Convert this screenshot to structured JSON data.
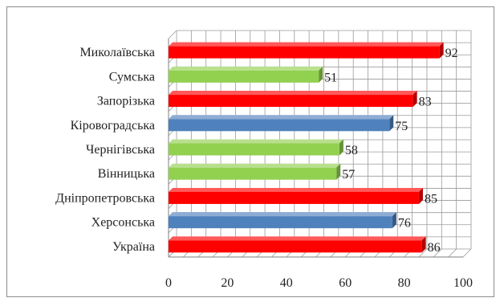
{
  "chart_data": {
    "type": "bar",
    "orientation": "horizontal",
    "style": "3d",
    "categories": [
      "Миколаївська",
      "Сумська",
      "Запорізька",
      "Кіровоградська",
      "Чернігівська",
      "Вінницька",
      "Дніпропетровська",
      "Херсонська",
      "Україна"
    ],
    "values": [
      92,
      51,
      83,
      75,
      58,
      57,
      85,
      76,
      86
    ],
    "bar_colors": [
      "#ff0000",
      "#92d050",
      "#ff0000",
      "#4f81bd",
      "#92d050",
      "#92d050",
      "#ff0000",
      "#4f81bd",
      "#ff0000"
    ],
    "xlim": [
      0,
      100
    ],
    "xticks": [
      "0",
      "20",
      "40",
      "60",
      "80",
      "100"
    ],
    "title": "",
    "xlabel": "",
    "ylabel": "",
    "grid": true,
    "legend": "none",
    "show_data_labels": true
  }
}
